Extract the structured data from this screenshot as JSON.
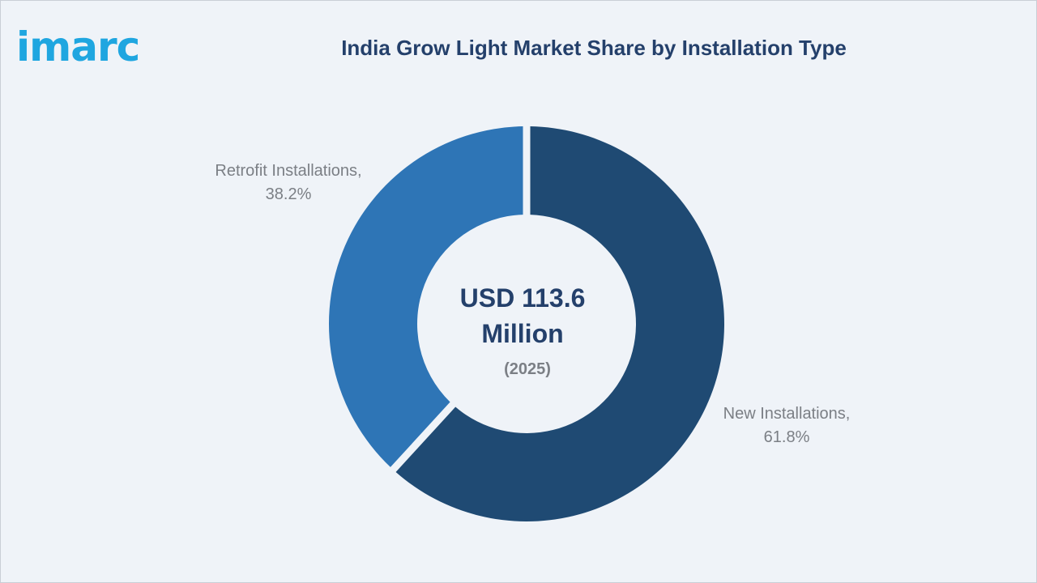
{
  "brand": {
    "logo_text": "imarc"
  },
  "colors": {
    "background": "#eff3f8",
    "accent": "#1fa6e0",
    "title": "#24406b",
    "new_installations": "#1f4a73",
    "retrofit_installations": "#2e75b6",
    "label_text": "#7b7f85"
  },
  "chart_data": {
    "type": "pie",
    "style": "donut",
    "title": "India Grow Light Market Share by Installation Type",
    "center_label": {
      "value_line1": "USD 113.6",
      "value_line2": "Million",
      "year": "(2025)"
    },
    "series": [
      {
        "name": "Installation Type",
        "slices": [
          {
            "label_line1": "New Installations,",
            "label_line2": "61.8%",
            "value": 61.8,
            "color": "#1f4a73"
          },
          {
            "label_line1": "Retrofit Installations,",
            "label_line2": "38.2%",
            "value": 38.2,
            "color": "#2e75b6"
          }
        ]
      }
    ],
    "legend": "none"
  }
}
